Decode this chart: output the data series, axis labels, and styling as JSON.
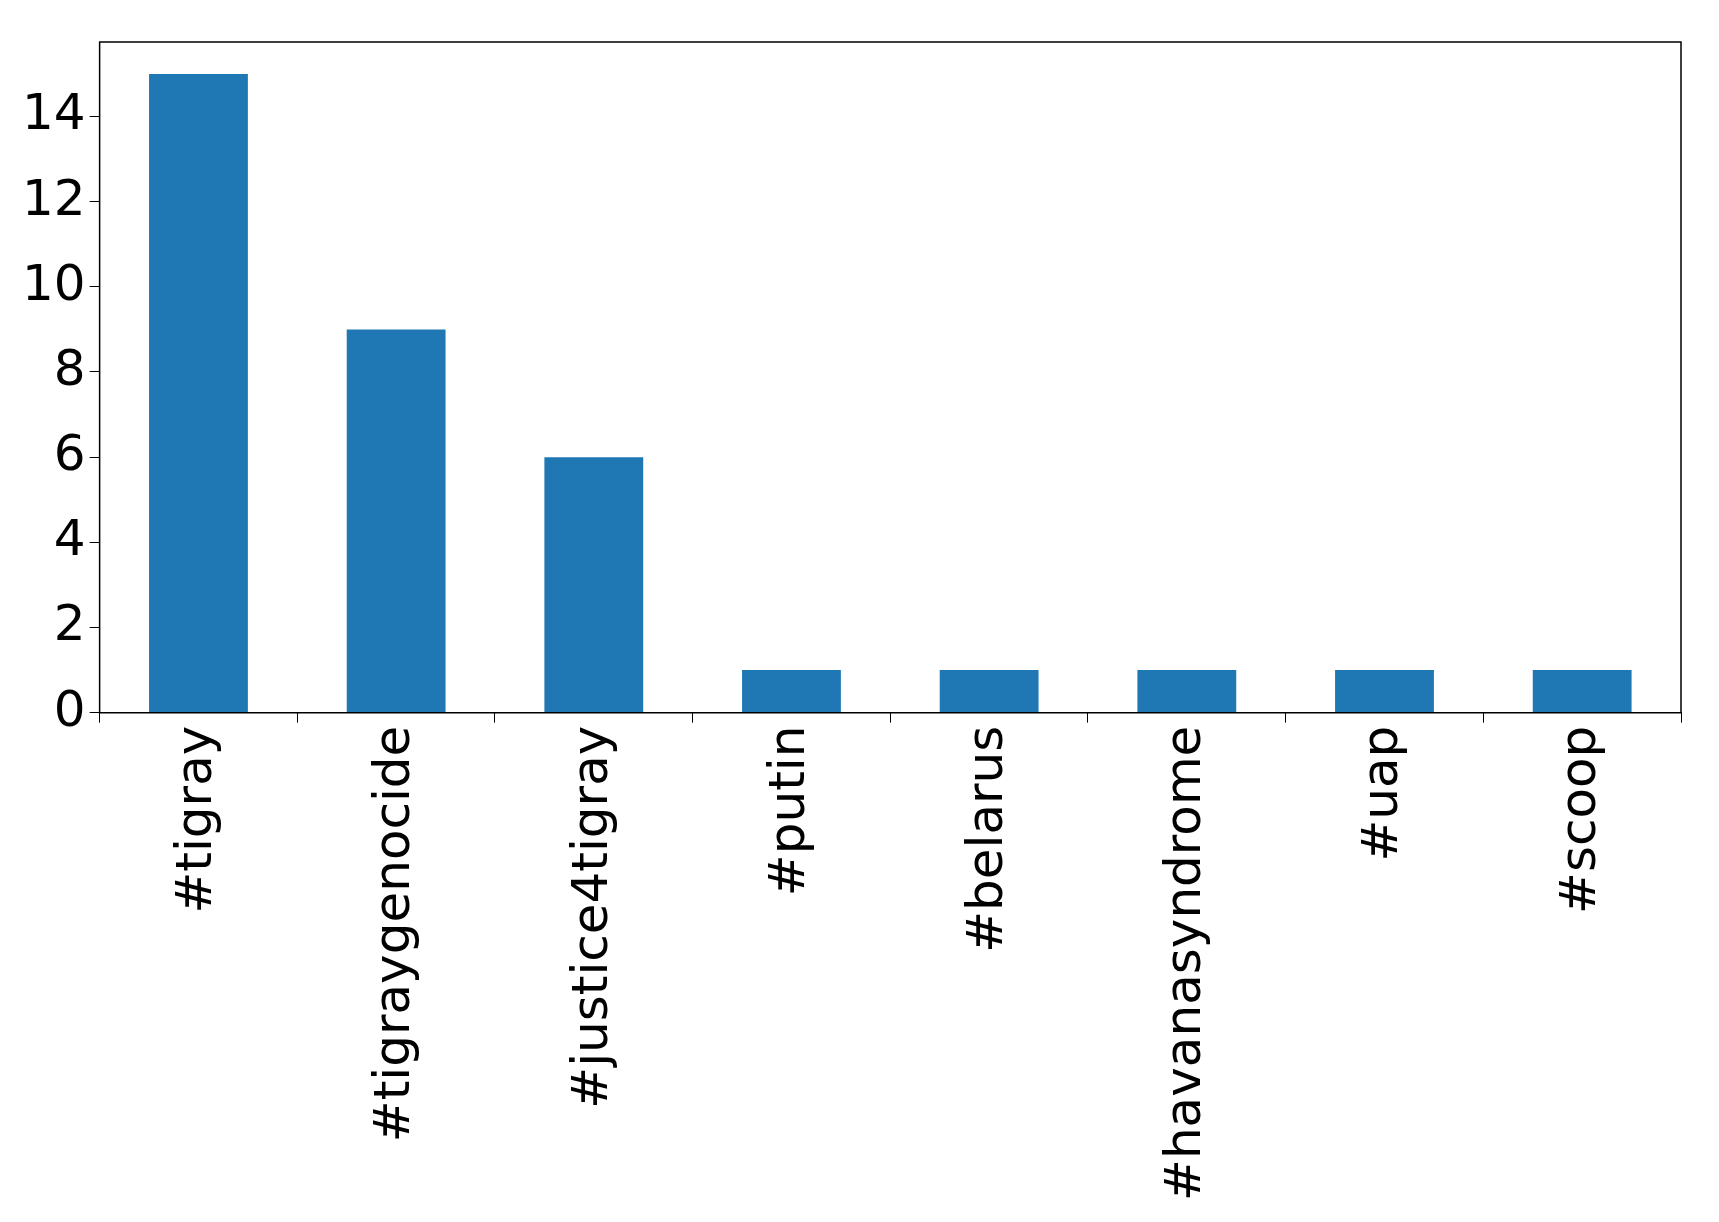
{
  "chart_data": {
    "type": "bar",
    "categories": [
      "#tigray",
      "#tigraygenocide",
      "#justice4tigray",
      "#putin",
      "#belarus",
      "#havanasyndrome",
      "#uap",
      "#scoop"
    ],
    "values": [
      15,
      9,
      6,
      1,
      1,
      1,
      1,
      1
    ],
    "color": "#1f77b4",
    "ylim": [
      0,
      15.75
    ],
    "yticks": [
      0,
      2,
      4,
      6,
      8,
      10,
      12,
      14
    ],
    "grid": false,
    "legend": false
  }
}
